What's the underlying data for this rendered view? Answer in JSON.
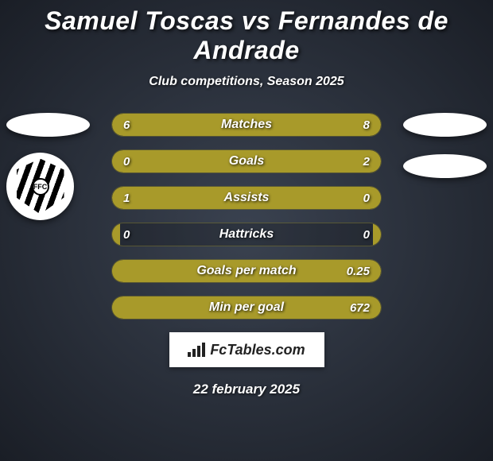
{
  "title": "Samuel Toscas vs Fernandes de Andrade",
  "subtitle": "Club competitions, Season 2025",
  "badge_text": "FFC",
  "stats": [
    {
      "label": "Matches",
      "left_val": "6",
      "right_val": "8",
      "left_pct": 42.9,
      "right_pct": 57.1
    },
    {
      "label": "Goals",
      "left_val": "0",
      "right_val": "2",
      "left_pct": 3,
      "right_pct": 100
    },
    {
      "label": "Assists",
      "left_val": "1",
      "right_val": "0",
      "left_pct": 100,
      "right_pct": 3
    },
    {
      "label": "Hattricks",
      "left_val": "0",
      "right_val": "0",
      "left_pct": 3,
      "right_pct": 3
    },
    {
      "label": "Goals per match",
      "left_val": "",
      "right_val": "0.25",
      "left_pct": 3,
      "right_pct": 100
    },
    {
      "label": "Min per goal",
      "left_val": "",
      "right_val": "672",
      "left_pct": 3,
      "right_pct": 100
    }
  ],
  "colors": {
    "bar_fill": "#a89a2a",
    "text": "#ffffff",
    "bg_inner": "#3a4250",
    "bg_outer": "#1a1e26"
  },
  "footer_brand": "FcTables.com",
  "footer_date": "22 february 2025"
}
